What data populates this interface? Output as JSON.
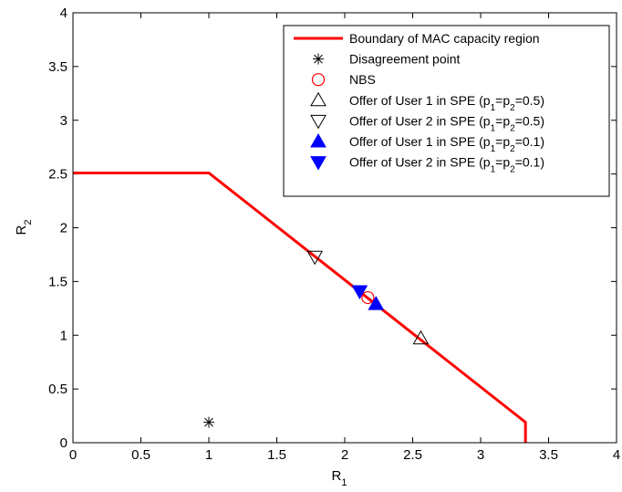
{
  "chart_data": {
    "type": "line",
    "title": "",
    "xlabel": "R",
    "xlabel_sub": "1",
    "ylabel": "R",
    "ylabel_sub": "2",
    "xlim": [
      0,
      4
    ],
    "ylim": [
      0,
      4
    ],
    "xticks": [
      0,
      0.5,
      1,
      1.5,
      2,
      2.5,
      3,
      3.5,
      4
    ],
    "yticks": [
      0,
      0.5,
      1,
      1.5,
      2,
      2.5,
      3,
      3.5,
      4
    ],
    "xtick_labels": [
      "0",
      "0.5",
      "1",
      "1.5",
      "2",
      "2.5",
      "3",
      "3.5",
      "4"
    ],
    "ytick_labels": [
      "0",
      "0.5",
      "1",
      "1.5",
      "2",
      "2.5",
      "3",
      "3.5",
      "4"
    ],
    "grid": false,
    "legend_position": "top-right",
    "series": [
      {
        "name": "Boundary of MAC capacity region",
        "kind": "line",
        "color": "#ff0000",
        "x": [
          0,
          1.0,
          3.33,
          3.33
        ],
        "y": [
          2.51,
          2.51,
          0.19,
          0
        ]
      },
      {
        "name": "Disagreement point",
        "kind": "marker",
        "marker": "asterisk",
        "color": "#000000",
        "x": [
          1.0
        ],
        "y": [
          0.19
        ]
      },
      {
        "name": "NBS",
        "kind": "marker",
        "marker": "circle",
        "color": "#ff0000",
        "x": [
          2.17
        ],
        "y": [
          1.35
        ]
      },
      {
        "name": "Offer of User 1 in SPE (p",
        "name_parts": [
          "Offer of User 1 in SPE (p",
          "1",
          "=p",
          "2",
          "=0.5)"
        ],
        "kind": "marker",
        "marker": "triangle-up-open",
        "color": "#000000",
        "x": [
          2.56
        ],
        "y": [
          0.97
        ]
      },
      {
        "name_parts": [
          "Offer of User 2 in SPE (p",
          "1",
          "=p",
          "2",
          "=0.5)"
        ],
        "kind": "marker",
        "marker": "triangle-down-open",
        "color": "#000000",
        "x": [
          1.78
        ],
        "y": [
          1.73
        ]
      },
      {
        "name_parts": [
          "Offer of User 1 in SPE (p",
          "1",
          "=p",
          "2",
          "=0.1)"
        ],
        "kind": "marker",
        "marker": "triangle-up-filled",
        "color": "#0000ff",
        "x": [
          2.23
        ],
        "y": [
          1.29
        ]
      },
      {
        "name_parts": [
          "Offer of User 2 in SPE (p",
          "1",
          "=p",
          "2",
          "=0.1)"
        ],
        "kind": "marker",
        "marker": "triangle-down-filled",
        "color": "#0000ff",
        "x": [
          2.11
        ],
        "y": [
          1.41
        ]
      }
    ]
  }
}
